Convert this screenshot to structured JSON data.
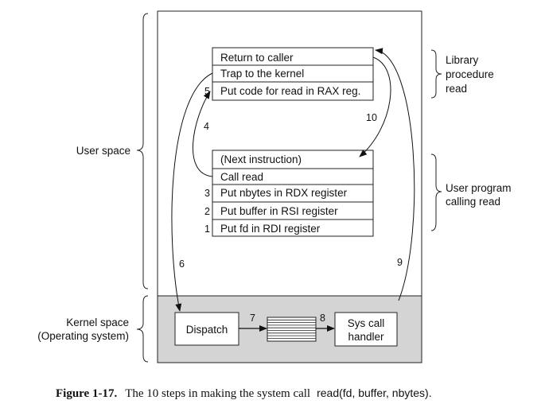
{
  "library_box": {
    "rows": [
      "Return to caller",
      "Trap to the kernel",
      "Put code for read in RAX reg."
    ],
    "step_labels": [
      "",
      "",
      "5"
    ],
    "brace_label": [
      "Library",
      "procedure",
      "read"
    ]
  },
  "user_program_box": {
    "rows": [
      "(Next instruction)",
      "Call read",
      "Put nbytes in RDX register",
      "Put buffer in RSI register",
      "Put fd in RDI register"
    ],
    "step_labels": [
      "",
      "",
      "3",
      "2",
      "1"
    ],
    "brace_label": [
      "User program",
      "calling read"
    ]
  },
  "left_labels": {
    "user_space": "User space",
    "kernel_space": [
      "Kernel space",
      "(Operating system)"
    ]
  },
  "kernel": {
    "dispatch": "Dispatch",
    "handler": [
      "Sys call",
      "handler"
    ]
  },
  "arrow_labels": {
    "step4": "4",
    "step6": "6",
    "step7": "7",
    "step8": "8",
    "step9": "9",
    "step10": "10"
  },
  "caption": {
    "label": "Figure 1-17.",
    "text": "The 10 steps in making the system call",
    "call": "read(fd, buffer, nbytes)."
  }
}
